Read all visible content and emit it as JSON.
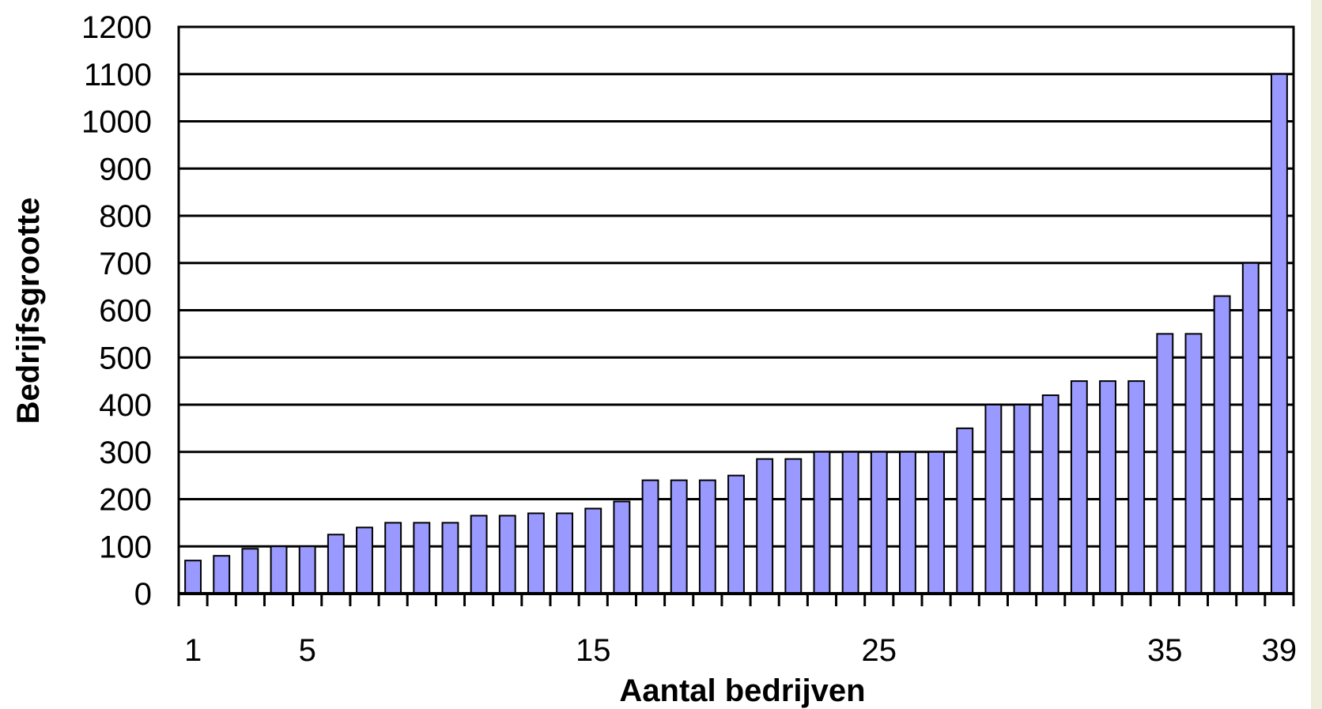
{
  "chart_data": {
    "type": "bar",
    "xlabel": "Aantal bedrijven",
    "ylabel": "Bedrijfsgrootte",
    "ylim": [
      0,
      1200
    ],
    "yticks": [
      0,
      100,
      200,
      300,
      400,
      500,
      600,
      700,
      800,
      900,
      1000,
      1100,
      1200
    ],
    "x_tick_labels": [
      1,
      5,
      15,
      25,
      35,
      39
    ],
    "grid": "horizontal",
    "legend": "none",
    "bar_color": "#9999ff",
    "x": [
      1,
      2,
      3,
      4,
      5,
      6,
      7,
      8,
      9,
      10,
      11,
      12,
      13,
      14,
      15,
      16,
      17,
      18,
      19,
      20,
      21,
      22,
      23,
      24,
      25,
      26,
      27,
      28,
      29,
      30,
      31,
      32,
      33,
      34,
      35,
      36,
      37,
      38,
      39
    ],
    "values": [
      70,
      80,
      95,
      100,
      100,
      125,
      140,
      150,
      150,
      150,
      165,
      165,
      170,
      170,
      180,
      195,
      240,
      240,
      240,
      250,
      285,
      285,
      300,
      300,
      300,
      300,
      300,
      350,
      400,
      400,
      420,
      450,
      450,
      450,
      550,
      550,
      630,
      700,
      1100
    ]
  }
}
